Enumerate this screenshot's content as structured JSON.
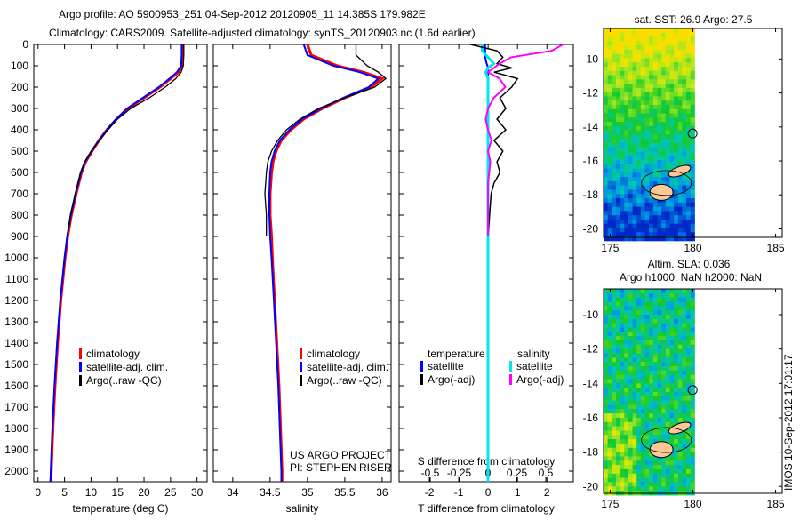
{
  "title_line1": "Argo profile: AO 5900953_251 04-Sep-2012 20120905_11 14.385S 179.982E",
  "title_line2": "Climatology: CARS2009. Satellite-adjusted climatology: synTS_20120903.nc (1.6d earlier)",
  "watermark": "IMOS 10-Sep-2012 17:01:17",
  "colors": {
    "climatology": "#ff0000",
    "satellite": "#0000ff",
    "argo": "#000000",
    "sal_satellite": "#00e5ee",
    "sal_argo": "#ff00ff"
  },
  "chart_data": [
    {
      "type": "line",
      "id": "temperature",
      "xlabel": "temperature (deg C)",
      "ylabel": "",
      "xlim": [
        -0.8,
        31.9
      ],
      "ylim": [
        2050,
        0
      ],
      "xticks": [
        0,
        5,
        10,
        15,
        20,
        25,
        30
      ],
      "yticks": [
        0,
        100,
        200,
        300,
        400,
        500,
        600,
        700,
        800,
        900,
        1000,
        1100,
        1200,
        1300,
        1400,
        1500,
        1600,
        1700,
        1800,
        1900,
        2000
      ],
      "legend": [
        "climatology",
        "satellite-adj. clim.",
        "Argo(..raw -QC)"
      ],
      "depth": [
        0,
        50,
        100,
        130,
        160,
        200,
        250,
        300,
        350,
        400,
        450,
        500,
        550,
        600,
        700,
        800,
        900,
        1000,
        1200,
        1400,
        1600,
        1800,
        2000,
        2050
      ],
      "series": [
        {
          "name": "climatology",
          "values": [
            27.3,
            27.3,
            27.2,
            26.5,
            25,
            23,
            20,
            17,
            14.8,
            13,
            11.5,
            10.2,
            9,
            8.2,
            7.2,
            6.3,
            5.6,
            5.1,
            4.3,
            3.7,
            3.2,
            2.8,
            2.5,
            2.4
          ]
        },
        {
          "name": "satellite-adj. clim.",
          "values": [
            27.1,
            27.1,
            27,
            26.2,
            24.8,
            22.8,
            19.8,
            16.8,
            14.7,
            13,
            11.5,
            10.1,
            8.9,
            8.1,
            7.1,
            6.2,
            5.5,
            5,
            4.2,
            3.6,
            3.1,
            2.7,
            2.4,
            2.35
          ]
        },
        {
          "name": "Argo(..raw -QC)",
          "values": [
            27.5,
            27.5,
            27.4,
            27,
            26,
            24,
            21,
            17.5,
            15,
            13.2,
            11.6,
            10,
            8.8,
            8,
            7,
            6.1,
            5.5
          ]
        }
      ]
    },
    {
      "type": "line",
      "id": "salinity",
      "xlabel": "salinity",
      "xlim": [
        33.74,
        36.12
      ],
      "ylim": [
        2050,
        0
      ],
      "xticks": [
        34,
        34.5,
        35,
        35.5,
        36
      ],
      "legend": [
        "climatology",
        "satellite-adj. clim.",
        "Argo(..raw -QC)"
      ],
      "annotation": [
        "US ARGO PROJECT",
        "PI: STEPHEN RISER"
      ],
      "depth": [
        0,
        50,
        100,
        130,
        160,
        200,
        250,
        300,
        350,
        400,
        450,
        500,
        550,
        600,
        700,
        800,
        900,
        1000,
        1200,
        1400,
        1600,
        1800,
        2000,
        2050
      ],
      "series": [
        {
          "name": "climatology",
          "values": [
            35.0,
            35.05,
            35.4,
            35.75,
            36.0,
            35.85,
            35.5,
            35.2,
            34.95,
            34.78,
            34.65,
            34.58,
            34.54,
            34.52,
            34.5,
            34.5,
            34.52,
            34.53,
            34.56,
            34.59,
            34.62,
            34.64,
            34.66,
            34.66
          ]
        },
        {
          "name": "satellite-adj. clim.",
          "values": [
            34.95,
            35.0,
            35.35,
            35.7,
            35.95,
            35.82,
            35.48,
            35.18,
            34.93,
            34.76,
            34.63,
            34.56,
            34.52,
            34.5,
            34.49,
            34.49,
            34.5,
            34.52,
            34.55,
            34.58,
            34.61,
            34.63,
            34.65,
            34.65
          ]
        },
        {
          "name": "Argo(..raw -QC)",
          "values": [
            35.65,
            35.65,
            35.8,
            35.95,
            36.05,
            35.9,
            35.5,
            35.15,
            34.9,
            34.72,
            34.6,
            34.52,
            34.47,
            34.45,
            34.43,
            34.45,
            34.45
          ]
        }
      ]
    },
    {
      "type": "line",
      "id": "difference",
      "xlabel": "T difference from climatology",
      "x2label": "S difference from climatology",
      "xlim": [
        -3.03,
        2.9
      ],
      "ylim": [
        2050,
        0
      ],
      "xticks": [
        -2,
        -1,
        0,
        1,
        2
      ],
      "x2ticks": [
        -0.5,
        -0.25,
        0,
        0.25,
        0.5
      ],
      "legend_temperature": {
        "title": "temperature",
        "items": [
          "satellite",
          "Argo(-adj)"
        ]
      },
      "legend_salinity": {
        "title": "salinity",
        "items": [
          "satellite",
          "Argo(-adj)"
        ]
      },
      "depth": [
        0,
        30,
        60,
        90,
        110,
        130,
        160,
        200,
        250,
        300,
        350,
        400,
        450,
        500,
        550,
        600,
        650,
        700,
        800,
        900
      ],
      "series": [
        {
          "name": "T satellite",
          "axis": "T",
          "values": [
            -0.1,
            -0.1,
            -0.1,
            -0.05,
            0,
            0,
            0,
            0,
            0,
            0,
            0,
            0,
            0,
            0,
            0,
            0,
            0,
            0,
            0,
            0
          ]
        },
        {
          "name": "T Argo(-adj)",
          "axis": "T",
          "values": [
            -0.6,
            0.3,
            0.5,
            0.3,
            0.8,
            0.2,
            1.0,
            0.8,
            0.4,
            0.6,
            0.3,
            0.6,
            0.2,
            0.5,
            0.3,
            0.4,
            0.2,
            0.1,
            0.05,
            0
          ]
        },
        {
          "name": "S satellite",
          "axis": "S",
          "values": [
            -0.05,
            -0.05,
            0,
            0.05,
            0,
            -0.02,
            0,
            0,
            0,
            0,
            0,
            0,
            0,
            0,
            0,
            0,
            0,
            0,
            0,
            0
          ]
        },
        {
          "name": "S Argo(-adj)",
          "axis": "S",
          "values": [
            0.65,
            0.55,
            0.2,
            0.1,
            0.05,
            0.0,
            0.1,
            0.15,
            0.05,
            0.0,
            -0.02,
            0.0,
            0.03,
            0.0,
            0.02,
            0.01,
            0.0,
            0.0,
            0,
            0
          ]
        }
      ]
    },
    {
      "type": "heatmap",
      "id": "sst-map",
      "title": "sat. SST: 26.9 Argo: 27.5",
      "xlim": [
        174.6,
        185.4
      ],
      "ylim": [
        -20.5,
        -8.2
      ],
      "xticks": [
        175,
        180,
        185
      ],
      "yticks": [
        -10,
        -12,
        -14,
        -16,
        -18,
        -20
      ],
      "argo_position": [
        179.982,
        -14.385
      ]
    },
    {
      "type": "heatmap",
      "id": "sla-map",
      "title_line1": "Altim. SLA: 0.036",
      "title_line2": "Argo h1000: NaN h2000: NaN",
      "xlim": [
        174.6,
        185.4
      ],
      "ylim": [
        -20.4,
        -8.5
      ],
      "xticks": [
        175,
        180,
        185
      ],
      "yticks": [
        -10,
        -12,
        -14,
        -16,
        -18,
        -20
      ],
      "argo_position": [
        179.982,
        -14.385
      ]
    }
  ]
}
